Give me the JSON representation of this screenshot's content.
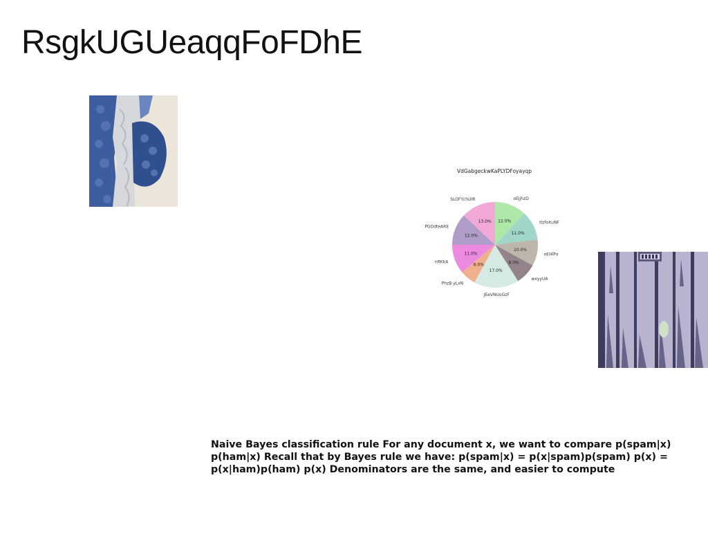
{
  "page": {
    "title": "RsgkUGUeaqqFoFDhE",
    "body_text": "Naive Bayes classification rule For any document x, we want to compare p(spam|x) p(ham|x) Recall that by Bayes rule we have: p(spam|x) = p(x|spam)p(spam) p(x) = p(x|ham)p(ham) p(x) Denominators are the same, and easier to compute"
  },
  "chart_data": {
    "type": "pie",
    "title": "VdGabgeckwKaPLYDFoyayqp",
    "start_angle_deg": 90,
    "direction": "clockwise",
    "slices": [
      {
        "label": "oEjjhzD",
        "value": 12.0,
        "pct_label": "12.0%",
        "color": "#aee8a8"
      },
      {
        "label": "tlzfoXuNF",
        "value": 11.0,
        "pct_label": "11.0%",
        "color": "#9fd6c9"
      },
      {
        "label": "oEHlPx",
        "value": 10.0,
        "pct_label": "10.0%",
        "color": "#bdb6ab"
      },
      {
        "label": "wxyyUA",
        "value": 8.0,
        "pct_label": "8.0%",
        "color": "#94838a"
      },
      {
        "label": "JEeVNUoGzF",
        "value": 17.0,
        "pct_label": "17.0%",
        "color": "#d4eae3"
      },
      {
        "label": "PhzB yLxN",
        "value": 6.0,
        "pct_label": "6.0%",
        "color": "#efb08e"
      },
      {
        "label": "nRKkA",
        "value": 11.0,
        "pct_label": "11.0%",
        "color": "#ec8ae0"
      },
      {
        "label": "PGDdteARE",
        "value": 12.0,
        "pct_label": "12.0%",
        "color": "#b09cc9"
      },
      {
        "label": "SLOFYchUIR",
        "value": 13.0,
        "pct_label": "13.0%",
        "color": "#f3a9d7"
      }
    ]
  }
}
